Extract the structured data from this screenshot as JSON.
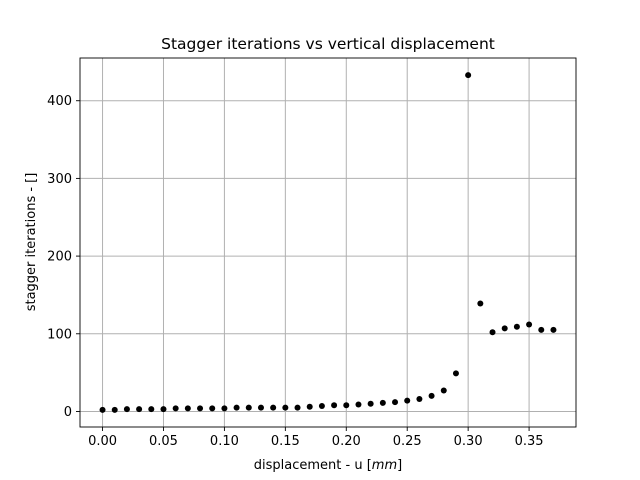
{
  "chart_data": {
    "type": "scatter",
    "title": "Stagger iterations vs vertical displacement",
    "xlabel": "displacement - u [mm]",
    "ylabel": "stagger iterations - []",
    "xlim": [
      -0.0185,
      0.3885
    ],
    "ylim": [
      -20,
      455
    ],
    "xticks": [
      0.0,
      0.05,
      0.1,
      0.15,
      0.2,
      0.25,
      0.3,
      0.35
    ],
    "xtick_labels": [
      "0.00",
      "0.05",
      "0.10",
      "0.15",
      "0.20",
      "0.25",
      "0.30",
      "0.35"
    ],
    "yticks": [
      0,
      100,
      200,
      300,
      400
    ],
    "ytick_labels": [
      "0",
      "100",
      "200",
      "300",
      "400"
    ],
    "grid": true,
    "marker_color": "#000000",
    "points": [
      {
        "x": 0.0,
        "y": 2
      },
      {
        "x": 0.01,
        "y": 2
      },
      {
        "x": 0.02,
        "y": 3
      },
      {
        "x": 0.03,
        "y": 3
      },
      {
        "x": 0.04,
        "y": 3
      },
      {
        "x": 0.05,
        "y": 3
      },
      {
        "x": 0.06,
        "y": 4
      },
      {
        "x": 0.07,
        "y": 4
      },
      {
        "x": 0.08,
        "y": 4
      },
      {
        "x": 0.09,
        "y": 4
      },
      {
        "x": 0.1,
        "y": 4
      },
      {
        "x": 0.11,
        "y": 5
      },
      {
        "x": 0.12,
        "y": 5
      },
      {
        "x": 0.13,
        "y": 5
      },
      {
        "x": 0.14,
        "y": 5
      },
      {
        "x": 0.15,
        "y": 5
      },
      {
        "x": 0.16,
        "y": 5
      },
      {
        "x": 0.17,
        "y": 6
      },
      {
        "x": 0.18,
        "y": 7
      },
      {
        "x": 0.19,
        "y": 8
      },
      {
        "x": 0.2,
        "y": 8
      },
      {
        "x": 0.21,
        "y": 9
      },
      {
        "x": 0.22,
        "y": 10
      },
      {
        "x": 0.23,
        "y": 11
      },
      {
        "x": 0.24,
        "y": 12
      },
      {
        "x": 0.25,
        "y": 14
      },
      {
        "x": 0.26,
        "y": 16
      },
      {
        "x": 0.27,
        "y": 20
      },
      {
        "x": 0.28,
        "y": 27
      },
      {
        "x": 0.29,
        "y": 49
      },
      {
        "x": 0.3,
        "y": 433
      },
      {
        "x": 0.31,
        "y": 139
      },
      {
        "x": 0.32,
        "y": 102
      },
      {
        "x": 0.33,
        "y": 107
      },
      {
        "x": 0.34,
        "y": 109
      },
      {
        "x": 0.35,
        "y": 112
      },
      {
        "x": 0.36,
        "y": 105
      },
      {
        "x": 0.37,
        "y": 105
      }
    ]
  }
}
